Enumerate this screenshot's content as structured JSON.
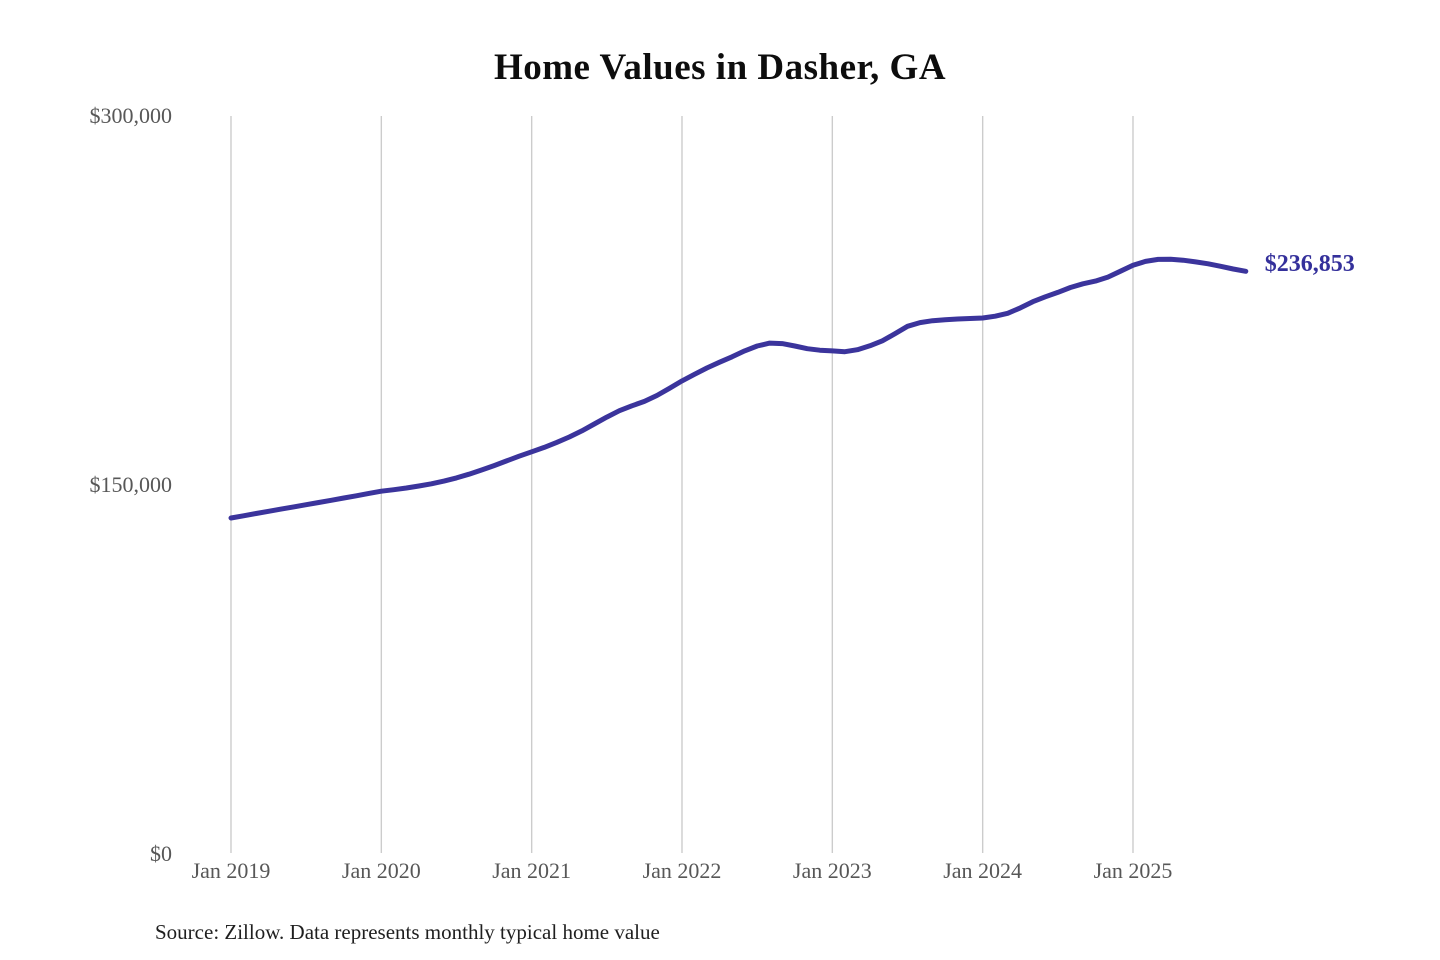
{
  "title": "Home Values in Dasher, GA",
  "source_note": "Source: Zillow. Data represents monthly typical home value",
  "colors": {
    "line": "#3b349c",
    "end_label": "#34309b",
    "gridline": "#cccccc",
    "axis_text": "#575757",
    "title_text": "#0d0d0d",
    "source_text": "#1f1f1f"
  },
  "chart_data": {
    "type": "line",
    "title": "Home Values in Dasher, GA",
    "xlabel": "",
    "ylabel": "",
    "ylim": [
      0,
      300000
    ],
    "grid": "vertical-only",
    "legend": "none",
    "end_label": "$236,853",
    "end_value": 236853,
    "y_ticks": [
      {
        "label": "$0",
        "value": 0
      },
      {
        "label": "$150,000",
        "value": 150000
      },
      {
        "label": "$300,000",
        "value": 300000
      }
    ],
    "x_ticks": [
      "Jan 2019",
      "Jan 2020",
      "Jan 2021",
      "Jan 2022",
      "Jan 2023",
      "Jan 2024",
      "Jan 2025"
    ],
    "x": [
      "2019-01",
      "2019-02",
      "2019-03",
      "2019-04",
      "2019-05",
      "2019-06",
      "2019-07",
      "2019-08",
      "2019-09",
      "2019-10",
      "2019-11",
      "2019-12",
      "2020-01",
      "2020-02",
      "2020-03",
      "2020-04",
      "2020-05",
      "2020-06",
      "2020-07",
      "2020-08",
      "2020-09",
      "2020-10",
      "2020-11",
      "2020-12",
      "2021-01",
      "2021-02",
      "2021-03",
      "2021-04",
      "2021-05",
      "2021-06",
      "2021-07",
      "2021-08",
      "2021-09",
      "2021-10",
      "2021-11",
      "2021-12",
      "2022-01",
      "2022-02",
      "2022-03",
      "2022-04",
      "2022-05",
      "2022-06",
      "2022-07",
      "2022-08",
      "2022-09",
      "2022-10",
      "2022-11",
      "2022-12",
      "2023-01",
      "2023-02",
      "2023-03",
      "2023-04",
      "2023-05",
      "2023-06",
      "2023-07",
      "2023-08",
      "2023-09",
      "2023-10",
      "2023-11",
      "2023-12",
      "2024-01",
      "2024-02",
      "2024-03",
      "2024-04",
      "2024-05",
      "2024-06",
      "2024-07",
      "2024-08",
      "2024-09",
      "2024-10",
      "2024-11",
      "2024-12",
      "2025-01",
      "2025-02",
      "2025-03",
      "2025-04",
      "2025-05",
      "2025-06",
      "2025-07",
      "2025-08",
      "2025-09",
      "2025-10"
    ],
    "series": [
      {
        "name": "Typical home value",
        "values": [
          136600,
          137500,
          138400,
          139300,
          140200,
          141100,
          142000,
          142900,
          143800,
          144700,
          145600,
          146600,
          147500,
          148100,
          148800,
          149600,
          150500,
          151600,
          152900,
          154400,
          156100,
          157900,
          159800,
          161700,
          163500,
          165300,
          167300,
          169500,
          172000,
          174800,
          177600,
          180200,
          182200,
          184000,
          186400,
          189300,
          192300,
          195000,
          197600,
          199900,
          202100,
          204500,
          206500,
          207700,
          207500,
          206500,
          205400,
          204800,
          204500,
          204200,
          205000,
          206600,
          208600,
          211500,
          214500,
          216000,
          216800,
          217200,
          217500,
          217700,
          217900,
          218600,
          219800,
          222000,
          224500,
          226500,
          228300,
          230300,
          231800,
          232900,
          234500,
          236900,
          239300,
          240900,
          241700,
          241800,
          241400,
          240700,
          239900,
          238900,
          237800,
          236853
        ]
      }
    ]
  }
}
